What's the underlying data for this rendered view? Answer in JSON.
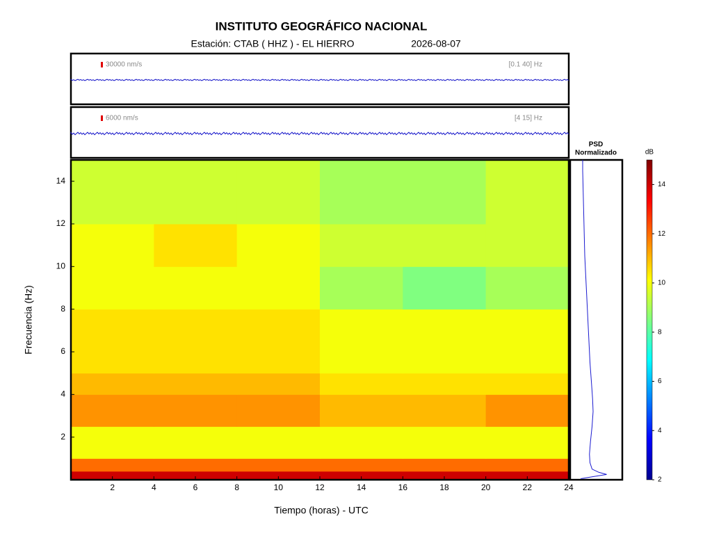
{
  "chart_data": {
    "type": "spectrogram",
    "title": "INSTITUTO GEOGRÁFICO NACIONAL",
    "subtitle": "Estación:  CTAB ( HHZ ) - EL HIERRO",
    "date": "2026-08-07",
    "traces": [
      {
        "scale": "30000 nm/s",
        "band": "[0.1 40] Hz",
        "color": "#1010c8"
      },
      {
        "scale": "6000 nm/s",
        "band": "[4 15] Hz",
        "color": "#1010c8"
      }
    ],
    "x_label": "Tiempo (horas) - UTC",
    "y_label": "Frecuencia  (Hz)",
    "xlim": [
      0,
      24
    ],
    "xticks": [
      2,
      4,
      6,
      8,
      10,
      12,
      14,
      16,
      18,
      20,
      22,
      24
    ],
    "ylim": [
      0,
      15
    ],
    "yticks": [
      2,
      4,
      6,
      8,
      10,
      12,
      14
    ],
    "xbins": [
      0,
      4,
      8,
      12,
      16,
      20,
      24
    ],
    "ybins": [
      0,
      0.4,
      1,
      2.5,
      4,
      5,
      8,
      10,
      12,
      15
    ],
    "z": [
      [
        14,
        14,
        14,
        14,
        14,
        14
      ],
      [
        12,
        12,
        12,
        12,
        12,
        12
      ],
      [
        10,
        10,
        10,
        10,
        10,
        10
      ],
      [
        11.5,
        11.5,
        11.5,
        11,
        11,
        11.5
      ],
      [
        11,
        11,
        11,
        10.5,
        10.5,
        10.5
      ],
      [
        10.5,
        10.5,
        10.5,
        10,
        10,
        10
      ],
      [
        10,
        10,
        10,
        9,
        8.5,
        9
      ],
      [
        10,
        10.5,
        10,
        9.5,
        9.5,
        9.5
      ],
      [
        9.5,
        9.5,
        9.5,
        9,
        9,
        9.5
      ]
    ],
    "zlim": [
      2,
      15
    ],
    "zticks": [
      2,
      4,
      6,
      8,
      10,
      12,
      14
    ],
    "z_label": "dB",
    "psd": {
      "title": "PSD",
      "subtitle": "Normalizado",
      "color": "#1a1ad0",
      "xlim": [
        0,
        1
      ],
      "freq": [
        0.05,
        0.15,
        0.25,
        0.35,
        0.5,
        0.8,
        1.2,
        1.8,
        2.5,
        3.2,
        3.8,
        4.5,
        5.5,
        6.5,
        7.5,
        8.5,
        9.5,
        10.5,
        11.5,
        12.5,
        13.5,
        14.5,
        15
      ],
      "values": [
        0.2,
        0.45,
        0.7,
        0.55,
        0.42,
        0.38,
        0.37,
        0.39,
        0.42,
        0.44,
        0.43,
        0.41,
        0.38,
        0.36,
        0.34,
        0.32,
        0.3,
        0.28,
        0.27,
        0.26,
        0.25,
        0.24,
        0.24
      ]
    }
  }
}
